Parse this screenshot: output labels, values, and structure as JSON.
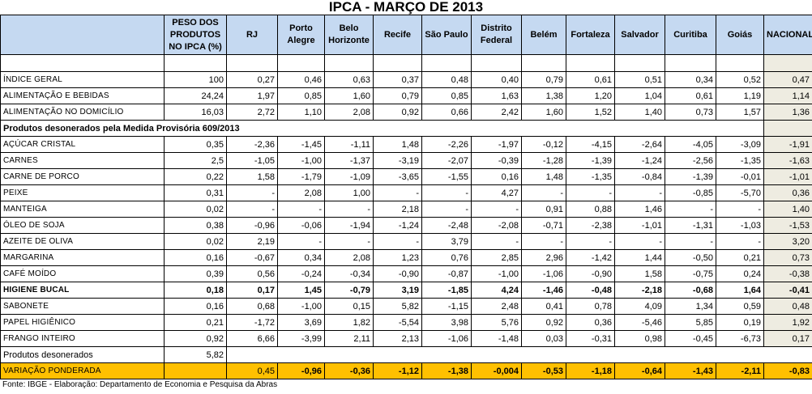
{
  "title": "IPCA - MARÇO DE 2013",
  "columns": [
    "PESO DOS PRODUTOS NO IPCA (%)",
    "RJ",
    "Porto Alegre",
    "Belo Horizonte",
    "Recife",
    "São Paulo",
    "Distrito Federal",
    "Belém",
    "Fortaleza",
    "Salvador",
    "Curitiba",
    "Goiás",
    "NACIONAL"
  ],
  "rows_top": [
    {
      "label": "ÍNDICE GERAL",
      "values": [
        "100",
        "0,27",
        "0,46",
        "0,63",
        "0,37",
        "0,48",
        "0,40",
        "0,79",
        "0,61",
        "0,51",
        "0,34",
        "0,52",
        "0,47"
      ]
    },
    {
      "label": "ALIMENTAÇÃO E BEBIDAS",
      "values": [
        "24,24",
        "1,97",
        "0,85",
        "1,60",
        "0,79",
        "0,85",
        "1,63",
        "1,38",
        "1,20",
        "1,04",
        "0,61",
        "1,19",
        "1,14"
      ]
    },
    {
      "label": "ALIMENTAÇÃO NO DOMICÍLIO",
      "values": [
        "16,03",
        "2,72",
        "1,10",
        "2,08",
        "0,92",
        "0,66",
        "2,42",
        "1,60",
        "1,52",
        "1,40",
        "0,73",
        "1,57",
        "1,36"
      ]
    }
  ],
  "section_title": "Produtos desonerados pela Medida Provisória 609/2013",
  "rows_products": [
    {
      "label": "AÇÚCAR CRISTAL",
      "values": [
        "0,35",
        "-2,36",
        "-1,45",
        "-1,11",
        "1,48",
        "-2,26",
        "-1,97",
        "-0,12",
        "-4,15",
        "-2,64",
        "-4,05",
        "-3,09",
        "-1,91"
      ]
    },
    {
      "label": "CARNES",
      "values": [
        "2,5",
        "-1,05",
        "-1,00",
        "-1,37",
        "-3,19",
        "-2,07",
        "-0,39",
        "-1,28",
        "-1,39",
        "-1,24",
        "-2,56",
        "-1,35",
        "-1,63"
      ]
    },
    {
      "label": "CARNE DE PORCO",
      "values": [
        "0,22",
        "1,58",
        "-1,79",
        "-1,09",
        "-3,65",
        "-1,55",
        "0,16",
        "1,48",
        "-1,35",
        "-0,84",
        "-1,39",
        "-0,01",
        "-1,01"
      ]
    },
    {
      "label": "PEIXE",
      "values": [
        "0,31",
        "-",
        "2,08",
        "1,00",
        "-",
        "-",
        "4,27",
        "-",
        "-",
        "-",
        "-0,85",
        "-5,70",
        "0,36"
      ]
    },
    {
      "label": "MANTEIGA",
      "values": [
        "0,02",
        "-",
        "-",
        "-",
        "2,18",
        "-",
        "-",
        "0,91",
        "0,88",
        "1,46",
        "-",
        "-",
        "1,40"
      ]
    },
    {
      "label": "ÓLEO DE SOJA",
      "values": [
        "0,38",
        "-0,96",
        "-0,06",
        "-1,94",
        "-1,24",
        "-2,48",
        "-2,08",
        "-0,71",
        "-2,38",
        "-1,01",
        "-1,31",
        "-1,03",
        "-1,53"
      ]
    },
    {
      "label": "AZEITE DE OLIVA",
      "values": [
        "0,02",
        "2,19",
        "-",
        "-",
        "-",
        "3,79",
        "-",
        "-",
        "-",
        "-",
        "-",
        "-",
        "3,20"
      ]
    },
    {
      "label": "MARGARINA",
      "values": [
        "0,16",
        "-0,67",
        "0,34",
        "2,08",
        "1,23",
        "0,76",
        "2,85",
        "2,96",
        "-1,42",
        "1,44",
        "-0,50",
        "0,21",
        "0,73"
      ]
    },
    {
      "label": "CAFÉ MOÍDO",
      "values": [
        "0,39",
        "0,56",
        "-0,24",
        "-0,34",
        "-0,90",
        "-0,87",
        "-1,00",
        "-1,06",
        "-0,90",
        "1,58",
        "-0,75",
        "0,24",
        "-0,38"
      ]
    }
  ],
  "hygiene_row": {
    "label": "HIGIENE BUCAL",
    "values": [
      "0,18",
      "0,17",
      "1,45",
      "-0,79",
      "3,19",
      "-1,85",
      "4,24",
      "-1,46",
      "-0,48",
      "-2,18",
      "-0,68",
      "1,64",
      "-0,41"
    ]
  },
  "rows_after": [
    {
      "label": "SABONETE",
      "values": [
        "0,16",
        "0,68",
        "-1,00",
        "0,15",
        "5,82",
        "-1,15",
        "2,48",
        "0,41",
        "0,78",
        "4,09",
        "1,34",
        "0,59",
        "0,48"
      ]
    },
    {
      "label": "PAPEL HIGIÊNICO",
      "values": [
        "0,21",
        "-1,72",
        "3,69",
        "1,82",
        "-5,54",
        "3,98",
        "5,76",
        "0,92",
        "0,36",
        "-5,46",
        "5,85",
        "0,19",
        "1,92"
      ]
    },
    {
      "label": "FRANGO INTEIRO",
      "values": [
        "0,92",
        "6,66",
        "-3,99",
        "2,11",
        "2,13",
        "-1,06",
        "-1,48",
        "0,03",
        "-0,31",
        "0,98",
        "-0,45",
        "-6,73",
        "0,17"
      ]
    }
  ],
  "desonerados": {
    "label": "Produtos desonerados",
    "value": "5,82"
  },
  "variacao": {
    "label": "VARIAÇÃO PONDERADA",
    "values": [
      "0,45",
      "-0,96",
      "-0,36",
      "-1,12",
      "-1,38",
      "-0,004",
      "-0,53",
      "-1,18",
      "-0,64",
      "-1,43",
      "-2,11",
      "-0,83"
    ]
  },
  "footer": "Fonte: IBGE - Elaboração: Departamento de Economia e Pesquisa da Abras",
  "colors": {
    "header_bg": "#c5d9f1",
    "nacional_bg": "#eeece1",
    "variacao_bg": "#ffc000"
  }
}
